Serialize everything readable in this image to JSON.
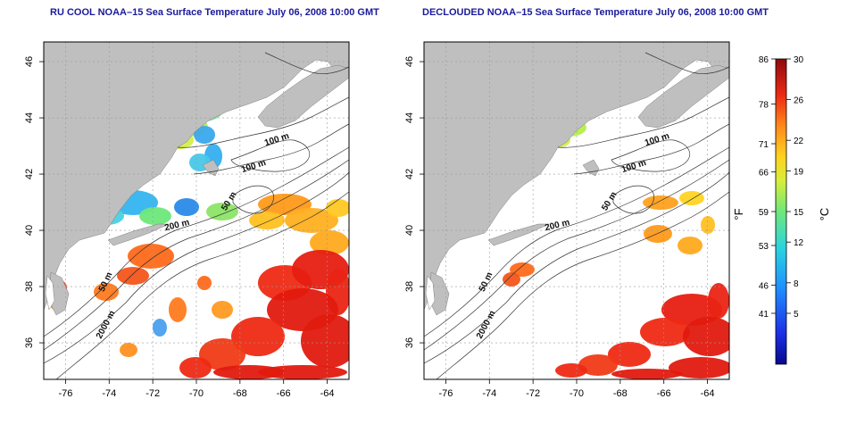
{
  "panels": [
    {
      "id": "ru-cool",
      "title": "RU COOL NOAA–15 Sea Surface Temperature July 06, 2008 10:00 GMT",
      "x_ticks": [
        "-76",
        "-74",
        "-72",
        "-70",
        "-68",
        "-66",
        "-64"
      ],
      "y_ticks": [
        "46",
        "44",
        "42",
        "40",
        "38",
        "36"
      ],
      "contour_labels": [
        "100 m",
        "100 m",
        "50 m",
        "200 m",
        "50 m",
        "2000 m"
      ],
      "cloud_masked": false
    },
    {
      "id": "declouded",
      "title": "DECLOUDED NOAA–15 Sea Surface Temperature July 06, 2008 10:00 GMT",
      "x_ticks": [
        "-76",
        "-74",
        "-72",
        "-70",
        "-68",
        "-66",
        "-64"
      ],
      "y_ticks": [
        "46",
        "44",
        "42",
        "40",
        "38",
        "36"
      ],
      "contour_labels": [
        "100 m",
        "100 m",
        "50 m",
        "200 m",
        "50 m",
        "2000 m"
      ],
      "cloud_masked": true
    }
  ],
  "colorbar": {
    "f_label": "°F",
    "c_label": "°C",
    "f_ticks": [
      "86",
      "78",
      "71",
      "66",
      "59",
      "53",
      "46",
      "41"
    ],
    "c_ticks": [
      "30",
      "26",
      "22",
      "19",
      "15",
      "12",
      "8",
      "5"
    ]
  },
  "colors": {
    "land": "#bfbfbf",
    "title": "#1a1a9c",
    "warm": "#e11a0f",
    "cold": "#1e3fd6"
  }
}
